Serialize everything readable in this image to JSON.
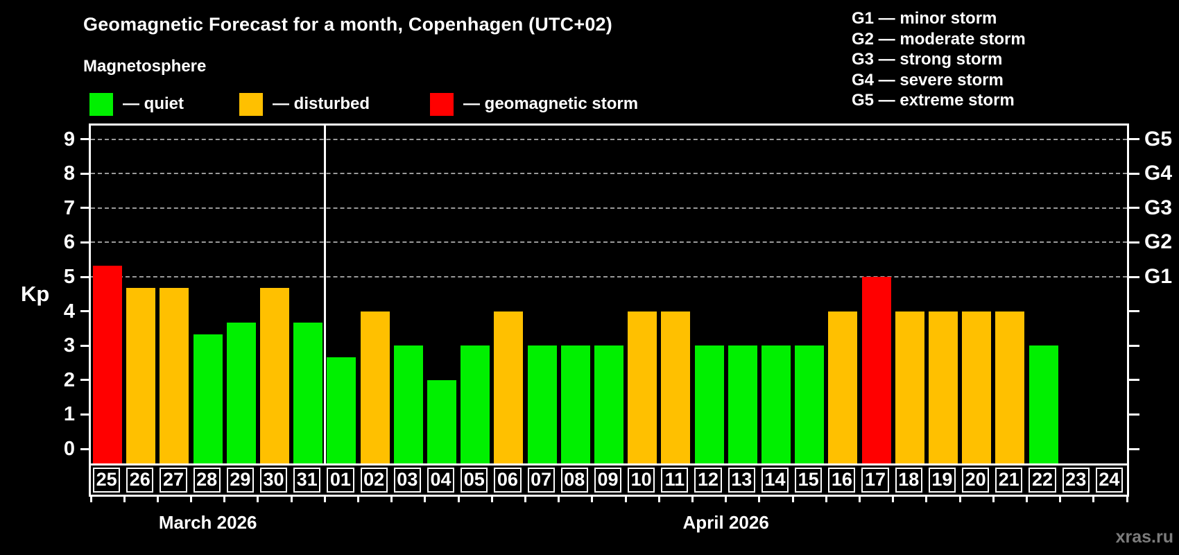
{
  "title": "Geomagnetic Forecast for a month, Copenhagen (UTC+02)",
  "subtitle": "Magnetosphere",
  "watermark": "xras.ru",
  "colors": {
    "quiet": "#00f000",
    "disturbed": "#ffc000",
    "storm": "#ff0000",
    "axis": "#ffffff",
    "gridline": "#9a9a9a"
  },
  "legend": {
    "items": [
      {
        "label": "— quiet",
        "status": "quiet"
      },
      {
        "label": "— disturbed",
        "status": "disturbed"
      },
      {
        "label": "— geomagnetic storm",
        "status": "storm"
      }
    ]
  },
  "storm_scale_legend": [
    "G1 — minor storm",
    "G2 — moderate storm",
    "G3 — strong storm",
    "G4 — severe storm",
    "G5 — extreme storm"
  ],
  "chart_data": {
    "type": "bar",
    "title": "Geomagnetic Forecast for a month, Copenhagen (UTC+02)",
    "ylabel": "Kp",
    "ylim": [
      0,
      9.4
    ],
    "yticks": [
      0,
      1,
      2,
      3,
      4,
      5,
      6,
      7,
      8,
      9
    ],
    "gridlines_at": [
      5,
      6,
      7,
      8,
      9
    ],
    "grid": "dashed, only at storm levels G1-G5",
    "legend_position": "top",
    "right_axis": [
      {
        "kp": 5,
        "label": "G1"
      },
      {
        "kp": 6,
        "label": "G2"
      },
      {
        "kp": 7,
        "label": "G3"
      },
      {
        "kp": 8,
        "label": "G4"
      },
      {
        "kp": 9,
        "label": "G5"
      }
    ],
    "months": [
      {
        "label": "March 2026",
        "days": 7
      },
      {
        "label": "April 2026",
        "days": 24
      }
    ],
    "days": [
      {
        "date": "25",
        "kp": 5.33,
        "status": "storm"
      },
      {
        "date": "26",
        "kp": 4.67,
        "status": "disturbed"
      },
      {
        "date": "27",
        "kp": 4.67,
        "status": "disturbed"
      },
      {
        "date": "28",
        "kp": 3.33,
        "status": "quiet"
      },
      {
        "date": "29",
        "kp": 3.67,
        "status": "quiet"
      },
      {
        "date": "30",
        "kp": 4.67,
        "status": "disturbed"
      },
      {
        "date": "31",
        "kp": 3.67,
        "status": "quiet"
      },
      {
        "date": "01",
        "kp": 2.67,
        "status": "quiet"
      },
      {
        "date": "02",
        "kp": 4.0,
        "status": "disturbed"
      },
      {
        "date": "03",
        "kp": 3.0,
        "status": "quiet"
      },
      {
        "date": "04",
        "kp": 2.0,
        "status": "quiet"
      },
      {
        "date": "05",
        "kp": 3.0,
        "status": "quiet"
      },
      {
        "date": "06",
        "kp": 4.0,
        "status": "disturbed"
      },
      {
        "date": "07",
        "kp": 3.0,
        "status": "quiet"
      },
      {
        "date": "08",
        "kp": 3.0,
        "status": "quiet"
      },
      {
        "date": "09",
        "kp": 3.0,
        "status": "quiet"
      },
      {
        "date": "10",
        "kp": 4.0,
        "status": "disturbed"
      },
      {
        "date": "11",
        "kp": 4.0,
        "status": "disturbed"
      },
      {
        "date": "12",
        "kp": 3.0,
        "status": "quiet"
      },
      {
        "date": "13",
        "kp": 3.0,
        "status": "quiet"
      },
      {
        "date": "14",
        "kp": 3.0,
        "status": "quiet"
      },
      {
        "date": "15",
        "kp": 3.0,
        "status": "quiet"
      },
      {
        "date": "16",
        "kp": 4.0,
        "status": "disturbed"
      },
      {
        "date": "17",
        "kp": 5.0,
        "status": "storm"
      },
      {
        "date": "18",
        "kp": 4.0,
        "status": "disturbed"
      },
      {
        "date": "19",
        "kp": 4.0,
        "status": "disturbed"
      },
      {
        "date": "20",
        "kp": 4.0,
        "status": "disturbed"
      },
      {
        "date": "21",
        "kp": 4.0,
        "status": "disturbed"
      },
      {
        "date": "22",
        "kp": 3.0,
        "status": "quiet"
      },
      {
        "date": "23",
        "kp": null,
        "status": "none"
      },
      {
        "date": "24",
        "kp": null,
        "status": "none"
      }
    ]
  }
}
